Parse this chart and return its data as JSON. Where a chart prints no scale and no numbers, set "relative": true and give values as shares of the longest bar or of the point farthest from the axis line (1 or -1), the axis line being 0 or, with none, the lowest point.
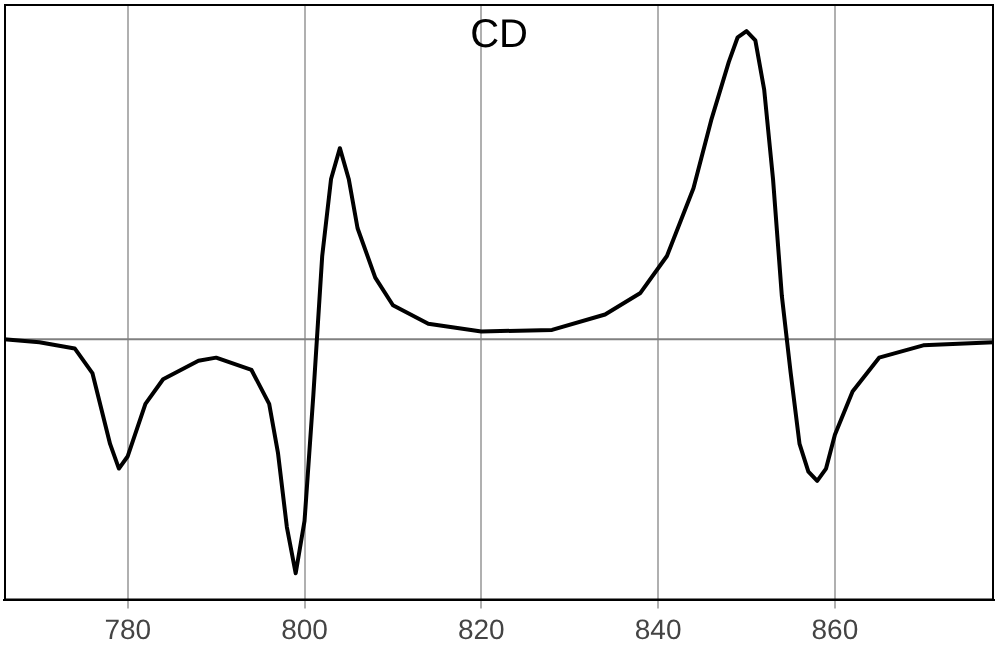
{
  "chart_data": {
    "type": "line",
    "title": "CD",
    "relative": true,
    "xlim": [
      766,
      878
    ],
    "xticks": [
      780,
      800,
      820,
      840,
      860
    ],
    "grid": "x",
    "legend": false,
    "tick_labels": "x",
    "marker": "none",
    "line_style": "solid",
    "ref_lines": [
      {
        "axis": "y",
        "value": 0,
        "color": "#808080"
      }
    ],
    "series": [
      {
        "color": "#000000",
        "x": [
          766,
          770,
          774,
          776,
          778,
          779,
          780,
          782,
          784,
          788,
          790,
          794,
          796,
          797,
          798,
          799,
          800,
          801,
          802,
          803,
          804,
          805,
          806,
          808,
          810,
          814,
          820,
          828,
          834,
          838,
          841,
          844,
          846,
          848,
          849,
          850,
          851,
          852,
          853,
          854,
          855,
          856,
          857,
          858,
          859,
          860,
          862,
          865,
          870,
          878
        ],
        "values": [
          0,
          -0.01,
          -0.03,
          -0.11,
          -0.34,
          -0.42,
          -0.38,
          -0.21,
          -0.13,
          -0.07,
          -0.06,
          -0.1,
          -0.21,
          -0.37,
          -0.61,
          -0.76,
          -0.59,
          -0.18,
          0.27,
          0.52,
          0.62,
          0.52,
          0.36,
          0.2,
          0.11,
          0.05,
          0.025,
          0.03,
          0.08,
          0.15,
          0.27,
          0.49,
          0.71,
          0.9,
          0.98,
          1,
          0.97,
          0.81,
          0.52,
          0.14,
          -0.11,
          -0.34,
          -0.43,
          -0.46,
          -0.42,
          -0.31,
          -0.17,
          -0.06,
          -0.02,
          -0.01
        ]
      }
    ]
  }
}
